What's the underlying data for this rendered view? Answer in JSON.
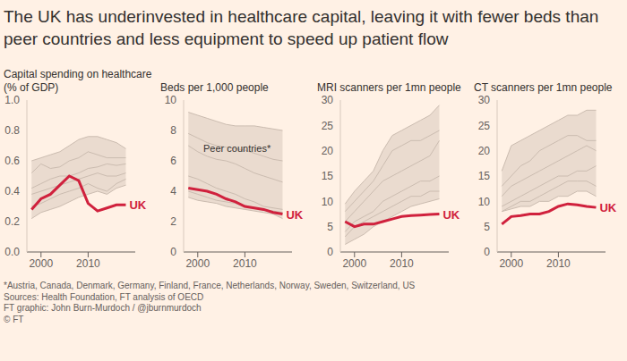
{
  "title": "The UK has underinvested in healthcare capital, leaving it with fewer beds than peer countries and less equipment to speed up patient flow",
  "notes": [
    "*Austria, Canada, Denmark, Germany, Finland, France, Netherlands, Norway, Sweden, Switzerland, US",
    "Sources: Health Foundation, FT analysis of OECD",
    "FT graphic: John Burn-Murdoch / @jburnmurdoch",
    "© FT"
  ],
  "chart_data": [
    {
      "type": "line",
      "title": "Capital spending on healthcare (% of GDP)",
      "x": [
        1998,
        2000,
        2002,
        2004,
        2006,
        2008,
        2010,
        2012,
        2014,
        2016,
        2018
      ],
      "xlim": [
        1997,
        2020
      ],
      "xticks": [
        2000,
        2010
      ],
      "ylim": [
        0,
        1
      ],
      "yticks": [
        {
          "value": 0,
          "label": "0.0"
        },
        {
          "value": 0.2,
          "label": "0.2"
        },
        {
          "value": 0.4,
          "label": "0.4"
        },
        {
          "value": 0.6,
          "label": "0.6"
        },
        {
          "value": 0.8,
          "label": "0.8"
        },
        {
          "value": 1,
          "label": "1.0"
        }
      ],
      "grid": false,
      "series": [
        {
          "name": "UK",
          "color": "#d0213d",
          "values": [
            0.28,
            0.35,
            0.38,
            0.44,
            0.5,
            0.47,
            0.32,
            0.27,
            0.29,
            0.31,
            0.31
          ]
        }
      ],
      "peers": {
        "color": "#cbbcb0",
        "values": [
          [
            0.6,
            0.62,
            0.64,
            0.66,
            0.7,
            0.74,
            0.76,
            0.76,
            0.74,
            0.72,
            0.68
          ],
          [
            0.52,
            0.58,
            0.55,
            0.56,
            0.6,
            0.62,
            0.66,
            0.64,
            0.62,
            0.62,
            0.62
          ],
          [
            0.42,
            0.45,
            0.48,
            0.5,
            0.5,
            0.52,
            0.55,
            0.56,
            0.58,
            0.57,
            0.58
          ],
          [
            0.38,
            0.4,
            0.42,
            0.44,
            0.46,
            0.48,
            0.5,
            0.52,
            0.5,
            0.5,
            0.52
          ],
          [
            0.3,
            0.32,
            0.35,
            0.38,
            0.4,
            0.42,
            0.45,
            0.42,
            0.4,
            0.45,
            0.48
          ],
          [
            0.22,
            0.26,
            0.28,
            0.3,
            0.33,
            0.36,
            0.38,
            0.4,
            0.38,
            0.42,
            0.44
          ]
        ]
      }
    },
    {
      "type": "line",
      "title": "Beds per 1,000 people",
      "annotation": "Peer countries*",
      "x": [
        1998,
        2000,
        2002,
        2004,
        2006,
        2008,
        2010,
        2012,
        2014,
        2016,
        2018
      ],
      "xlim": [
        1997,
        2020
      ],
      "xticks": [
        2000,
        2010
      ],
      "ylim": [
        0,
        10
      ],
      "yticks": [
        0,
        2,
        4,
        6,
        8,
        10
      ],
      "grid": false,
      "series": [
        {
          "name": "UK",
          "color": "#d0213d",
          "values": [
            4.2,
            4.1,
            4.0,
            3.8,
            3.5,
            3.3,
            3.0,
            2.9,
            2.8,
            2.6,
            2.5
          ]
        }
      ],
      "peers": {
        "color": "#cbbcb0",
        "values": [
          [
            9.2,
            9.0,
            8.8,
            8.6,
            8.4,
            8.3,
            8.3,
            8.3,
            8.2,
            8.1,
            8.0
          ],
          [
            7.8,
            7.5,
            7.2,
            7.0,
            6.9,
            6.8,
            6.7,
            6.5,
            6.3,
            6.1,
            6.0
          ],
          [
            7.0,
            6.6,
            6.3,
            6.1,
            6.0,
            5.8,
            5.5,
            5.2,
            5.0,
            4.8,
            4.6
          ],
          [
            5.0,
            4.8,
            4.5,
            4.2,
            4.0,
            3.8,
            3.5,
            3.3,
            3.0,
            2.9,
            2.8
          ],
          [
            4.0,
            3.8,
            3.6,
            3.4,
            3.3,
            3.2,
            3.0,
            2.9,
            2.8,
            2.7,
            2.6
          ],
          [
            3.6,
            3.4,
            3.3,
            3.2,
            3.0,
            2.9,
            2.8,
            2.7,
            2.6,
            2.5,
            2.2
          ]
        ]
      }
    },
    {
      "type": "line",
      "title": "MRI scanners per 1mn people",
      "x": [
        1998,
        2000,
        2002,
        2004,
        2006,
        2008,
        2010,
        2012,
        2014,
        2016,
        2018
      ],
      "xlim": [
        1997,
        2020
      ],
      "xticks": [
        2000,
        2010
      ],
      "ylim": [
        0,
        30
      ],
      "yticks": [
        0,
        5,
        10,
        15,
        20,
        25,
        30
      ],
      "grid": false,
      "series": [
        {
          "name": "UK",
          "color": "#d0213d",
          "values": [
            6.0,
            5.0,
            5.5,
            5.5,
            6.0,
            6.5,
            7.0,
            7.2,
            7.3,
            7.4,
            7.5
          ]
        }
      ],
      "peers": {
        "color": "#cbbcb0",
        "values": [
          [
            9.5,
            12,
            14,
            16,
            20,
            23,
            24,
            25,
            26,
            27,
            29
          ],
          [
            8,
            10,
            12,
            14,
            17,
            20,
            21,
            22,
            22,
            23,
            24
          ],
          [
            6,
            8,
            10,
            12,
            14,
            15,
            16,
            17,
            18,
            19,
            22
          ],
          [
            4,
            6,
            7,
            8,
            10,
            11,
            12,
            13,
            14,
            14,
            15
          ],
          [
            3,
            5,
            6,
            7,
            8,
            9,
            10,
            11,
            11,
            12,
            12
          ],
          [
            1.5,
            2.5,
            3.5,
            5,
            6,
            7,
            8,
            9,
            9.5,
            10,
            10.5
          ]
        ]
      }
    },
    {
      "type": "line",
      "title": "CT scanners per 1mn people",
      "x": [
        1998,
        2000,
        2002,
        2004,
        2006,
        2008,
        2010,
        2012,
        2014,
        2016,
        2018
      ],
      "xlim": [
        1997,
        2020
      ],
      "xticks": [
        2000,
        2010
      ],
      "ylim": [
        0,
        30
      ],
      "yticks": [
        0,
        5,
        10,
        15,
        20,
        25,
        30
      ],
      "grid": false,
      "series": [
        {
          "name": "UK",
          "color": "#d0213d",
          "values": [
            5.5,
            7.0,
            7.2,
            7.5,
            7.5,
            8.0,
            9.0,
            9.5,
            9.3,
            9.0,
            8.8
          ]
        }
      ],
      "peers": {
        "color": "#cbbcb0",
        "values": [
          [
            16,
            21,
            22,
            23,
            24,
            25,
            26,
            27,
            27,
            28,
            28
          ],
          [
            13,
            15,
            17,
            18,
            20,
            21,
            22,
            23,
            23,
            22,
            22
          ],
          [
            11,
            13,
            14,
            15,
            16,
            17,
            18,
            19,
            20,
            21,
            20
          ],
          [
            9,
            10,
            11,
            12,
            13,
            14,
            15,
            15,
            16,
            16,
            17
          ],
          [
            8,
            9,
            10,
            10,
            11,
            12,
            13,
            14,
            14,
            14,
            13
          ],
          [
            8,
            8.5,
            9,
            9,
            10,
            10,
            11,
            11,
            12,
            12,
            11
          ]
        ]
      }
    }
  ]
}
